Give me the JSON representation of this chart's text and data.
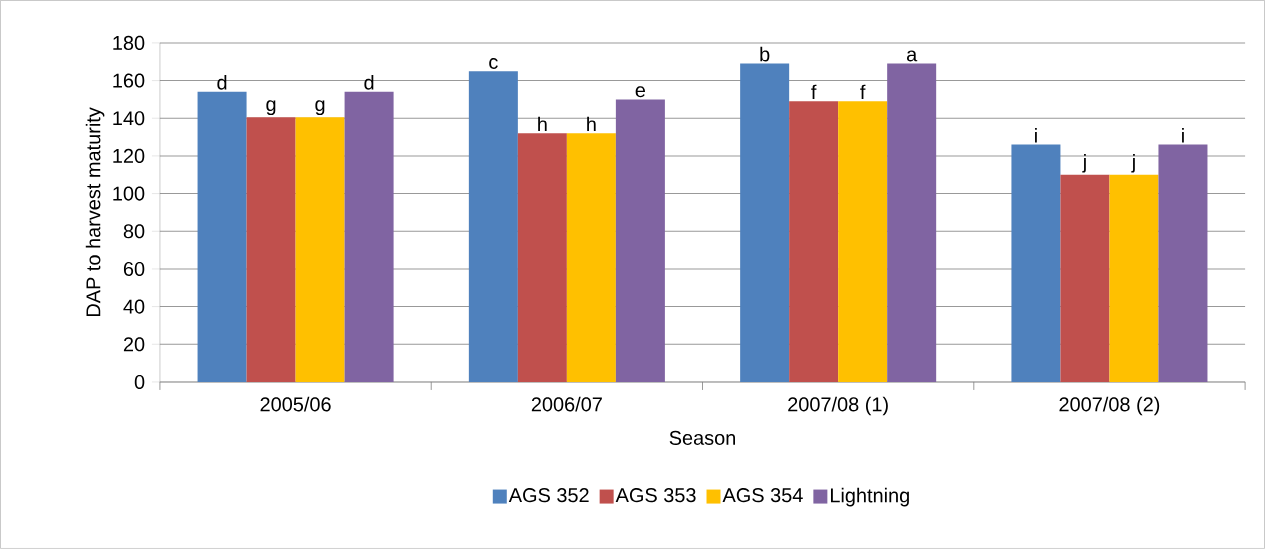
{
  "chart_data": {
    "type": "bar",
    "xlabel": "Season",
    "ylabel": "DAP to harvest maturity",
    "categories": [
      "2005/06",
      "2006/07",
      "2007/08 (1)",
      "2007/08 (2)"
    ],
    "series": [
      {
        "name": "AGS 352",
        "color": "#4f81bd",
        "values": [
          154,
          165,
          169,
          126
        ],
        "value_labels": [
          "d",
          "c",
          "b",
          "i"
        ]
      },
      {
        "name": "AGS 353",
        "color": "#c0504d",
        "values": [
          140.5,
          132,
          149,
          110
        ],
        "value_labels": [
          "g",
          "h",
          "f",
          "j"
        ]
      },
      {
        "name": "AGS 354",
        "color": "#ffc000",
        "values": [
          140.5,
          132,
          149,
          110
        ],
        "value_labels": [
          "g",
          "h",
          "f",
          "j"
        ]
      },
      {
        "name": "Lightning",
        "color": "#8064a2",
        "values": [
          154,
          150,
          169,
          126
        ],
        "value_labels": [
          "d",
          "e",
          "a",
          "i"
        ]
      }
    ],
    "ylim": [
      0,
      180
    ],
    "yticks": [
      0,
      20,
      40,
      60,
      80,
      100,
      120,
      140,
      160,
      180
    ],
    "grid": "y",
    "legend": "bottom"
  }
}
